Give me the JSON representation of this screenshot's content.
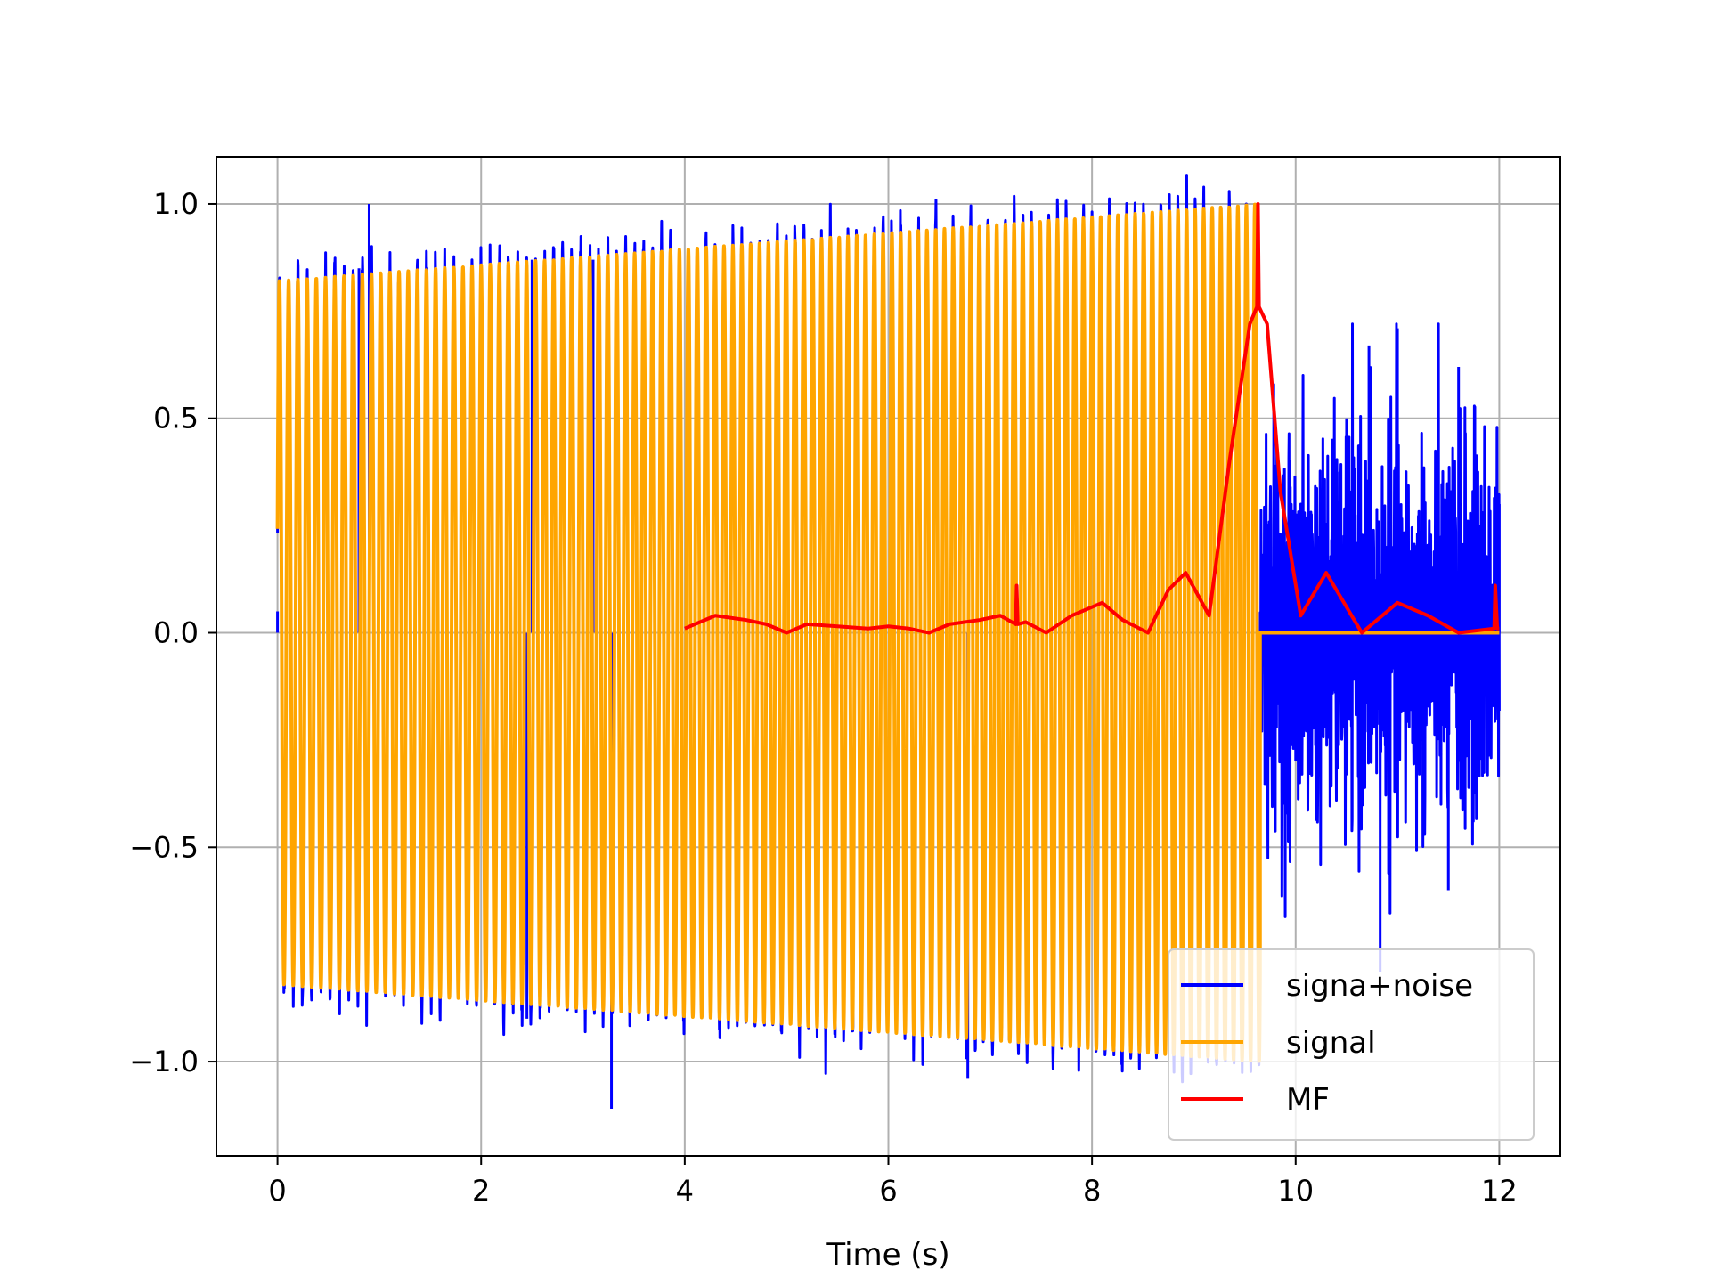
{
  "chart_data": {
    "type": "line",
    "title": "",
    "xlabel": "Time (s)",
    "ylabel": "",
    "xlim": [
      -0.6,
      12.6
    ],
    "ylim": [
      -1.22,
      1.11
    ],
    "grid": true,
    "legend_position": "lower right",
    "x_ticks": [
      0,
      2,
      4,
      6,
      8,
      10,
      12
    ],
    "x_tick_labels": [
      "0",
      "2",
      "4",
      "6",
      "8",
      "10",
      "12"
    ],
    "y_ticks": [
      1.0,
      0.5,
      0.0,
      -0.5,
      -1.0
    ],
    "y_tick_labels": [
      "1.0",
      "0.5",
      "0.0",
      "−0.5",
      "−1.0"
    ],
    "series": [
      {
        "name": "signa+noise",
        "color": "#0000ff",
        "description_points": [
          [
            0.0,
            0.05
          ],
          [
            0.9,
            1.0
          ],
          [
            0.8,
            0.85
          ],
          [
            2.5,
            0.87
          ],
          [
            3.1,
            0.87
          ],
          [
            3.28,
            -1.11
          ],
          [
            2.45,
            -0.9
          ],
          [
            6.78,
            -1.04
          ],
          [
            9.7,
            0.2
          ],
          [
            10.0,
            -0.3
          ],
          [
            10.5,
            0.5
          ],
          [
            10.72,
            0.67
          ],
          [
            10.83,
            -0.79
          ],
          [
            11.0,
            0.71
          ],
          [
            11.6,
            0.62
          ],
          [
            11.5,
            -0.6
          ],
          [
            12.0,
            0.3
          ]
        ]
      },
      {
        "name": "signal",
        "color": "#ffa500",
        "description_points": [
          [
            0.0,
            0.82
          ],
          [
            0.0,
            -0.82
          ],
          [
            9.65,
            1.0
          ],
          [
            9.65,
            -1.0
          ],
          [
            9.7,
            0.0
          ],
          [
            12.0,
            0.0
          ]
        ]
      },
      {
        "name": "MF",
        "color": "#ff0000",
        "x": [
          4.0,
          4.1,
          4.3,
          4.6,
          4.8,
          5.0,
          5.2,
          5.5,
          5.8,
          6.0,
          6.2,
          6.4,
          6.6,
          6.9,
          7.1,
          7.25,
          7.26,
          7.27,
          7.35,
          7.55,
          7.8,
          8.1,
          8.3,
          8.55,
          8.75,
          8.92,
          9.15,
          9.35,
          9.55,
          9.62,
          9.63,
          9.64,
          9.72,
          9.85,
          10.05,
          10.3,
          10.65,
          11.0,
          11.3,
          11.6,
          11.95,
          11.96,
          11.98,
          12.0
        ],
        "y": [
          0.01,
          0.02,
          0.04,
          0.03,
          0.02,
          0.0,
          0.02,
          0.015,
          0.01,
          0.015,
          0.01,
          0.0,
          0.02,
          0.03,
          0.04,
          0.02,
          0.11,
          0.02,
          0.025,
          0.0,
          0.04,
          0.07,
          0.03,
          0.0,
          0.1,
          0.14,
          0.04,
          0.4,
          0.72,
          0.76,
          1.0,
          0.76,
          0.72,
          0.33,
          0.04,
          0.14,
          0.0,
          0.07,
          0.04,
          0.0,
          0.01,
          0.11,
          0.01,
          0.01
        ]
      }
    ]
  }
}
